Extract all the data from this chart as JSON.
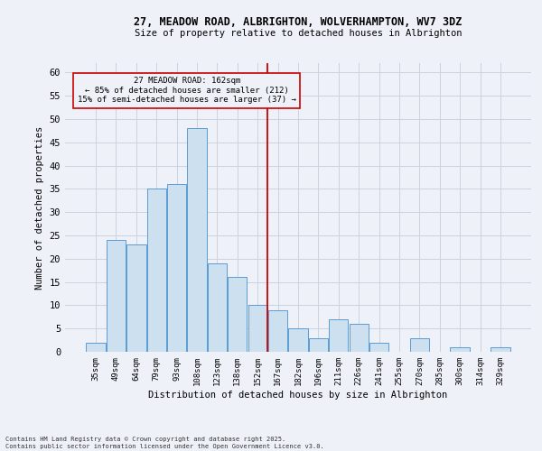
{
  "title1": "27, MEADOW ROAD, ALBRIGHTON, WOLVERHAMPTON, WV7 3DZ",
  "title2": "Size of property relative to detached houses in Albrighton",
  "xlabel": "Distribution of detached houses by size in Albrighton",
  "ylabel": "Number of detached properties",
  "footer1": "Contains HM Land Registry data © Crown copyright and database right 2025.",
  "footer2": "Contains public sector information licensed under the Open Government Licence v3.0.",
  "categories": [
    "35sqm",
    "49sqm",
    "64sqm",
    "79sqm",
    "93sqm",
    "108sqm",
    "123sqm",
    "138sqm",
    "152sqm",
    "167sqm",
    "182sqm",
    "196sqm",
    "211sqm",
    "226sqm",
    "241sqm",
    "255sqm",
    "270sqm",
    "285sqm",
    "300sqm",
    "314sqm",
    "329sqm"
  ],
  "values": [
    2,
    24,
    23,
    35,
    36,
    48,
    19,
    16,
    10,
    9,
    5,
    3,
    7,
    6,
    2,
    0,
    3,
    0,
    1,
    0,
    1
  ],
  "bar_color": "#cce0f0",
  "bar_edge_color": "#5b9bd5",
  "grid_color": "#c8d4e0",
  "background_color": "#eef2f8",
  "vline_color": "#cc0000",
  "vline_x_index": 8.5,
  "annotation_line1": "27 MEADOW ROAD: 162sqm",
  "annotation_line2": "← 85% of detached houses are smaller (212)",
  "annotation_line3": "15% of semi-detached houses are larger (37) →",
  "annotation_box_color": "#cc0000",
  "ylim": [
    0,
    62
  ],
  "yticks": [
    0,
    5,
    10,
    15,
    20,
    25,
    30,
    35,
    40,
    45,
    50,
    55,
    60
  ]
}
